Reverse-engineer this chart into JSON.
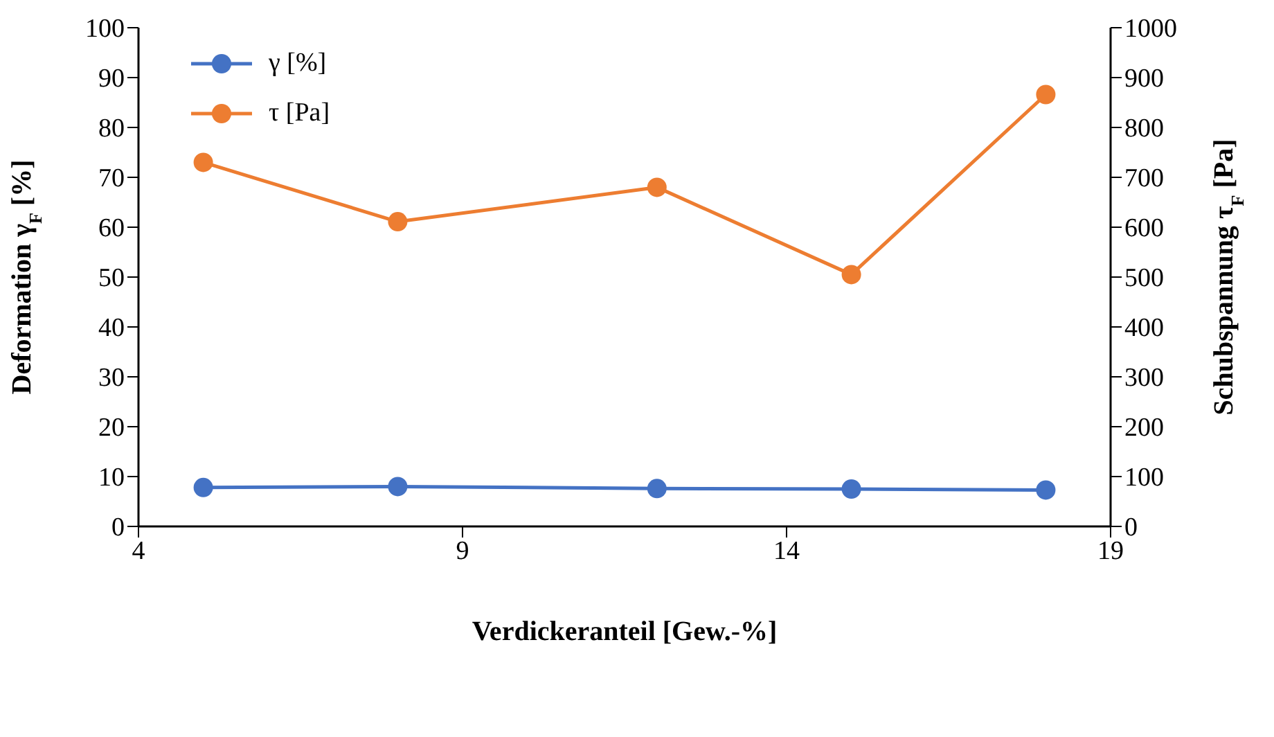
{
  "chart_data": {
    "type": "line",
    "xlabel": "Verdickeranteil [Gew.-%]",
    "ylabel": "Deformation γ$_{F}$ [%]",
    "y2label": "Schubspannung τ$_{F}$ [Pa]",
    "x": [
      5,
      8,
      12,
      15,
      18
    ],
    "series": [
      {
        "name": "γ [%]",
        "color": "#4472c4",
        "values": [
          7.8,
          8.0,
          7.6,
          7.5,
          7.3
        ]
      },
      {
        "name": "τ [Pa]",
        "color": "#ed7d31",
        "values": [
          730,
          611,
          680,
          505,
          866
        ],
        "axis": "y2"
      }
    ],
    "xlim": [
      4,
      19
    ],
    "xticks": [
      4,
      9,
      14,
      19
    ],
    "ylim": [
      0,
      100
    ],
    "yticks": [
      0,
      10,
      20,
      30,
      40,
      50,
      60,
      70,
      80,
      90,
      100
    ],
    "y2lim": [
      0,
      1000
    ],
    "y2ticks": [
      0,
      100,
      200,
      300,
      400,
      500,
      600,
      700,
      800,
      900,
      1000
    ],
    "legend": "top left",
    "marker": "circle",
    "line_style": "solid",
    "grid": false
  }
}
